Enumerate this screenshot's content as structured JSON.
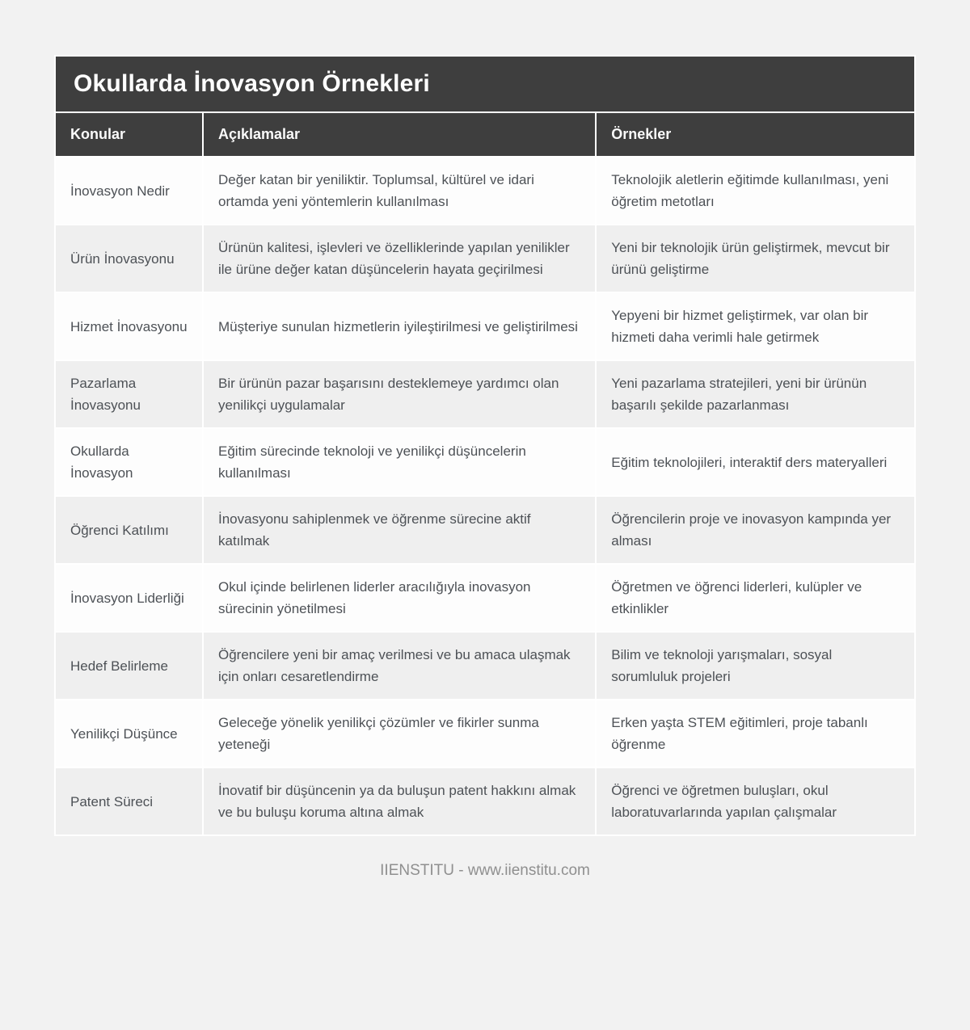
{
  "page": {
    "title": "Okullarda İnovasyon Örnekleri",
    "footer": "IIENSTITU - www.iienstitu.com"
  },
  "table": {
    "columns": [
      "Konular",
      "Açıklamalar",
      "Örnekler"
    ],
    "rows": [
      {
        "topic": "İnovasyon Nedir",
        "description": "Değer katan bir yeniliktir. Toplumsal, kültürel ve idari ortamda yeni yöntemlerin kullanılması",
        "example": "Teknolojik aletlerin eğitimde kullanılması, yeni öğretim metotları"
      },
      {
        "topic": "Ürün İnovasyonu",
        "description": "Ürünün kalitesi, işlevleri ve özelliklerinde yapılan yenilikler ile ürüne değer katan düşüncelerin hayata geçirilmesi",
        "example": "Yeni bir teknolojik ürün geliştirmek, mevcut bir ürünü geliştirme"
      },
      {
        "topic": "Hizmet İnovasyonu",
        "description": "Müşteriye sunulan hizmetlerin iyileştirilmesi ve geliştirilmesi",
        "example": "Yepyeni bir hizmet geliştirmek, var olan bir hizmeti daha verimli hale getirmek"
      },
      {
        "topic": "Pazarlama İnovasyonu",
        "description": "Bir ürünün pazar başarısını desteklemeye yardımcı olan yenilikçi uygulamalar",
        "example": "Yeni pazarlama stratejileri, yeni bir ürünün başarılı şekilde pazarlanması"
      },
      {
        "topic": "Okullarda İnovasyon",
        "description": "Eğitim sürecinde teknoloji ve yenilikçi düşüncelerin kullanılması",
        "example": "Eğitim teknolojileri, interaktif ders materyalleri"
      },
      {
        "topic": "Öğrenci Katılımı",
        "description": "İnovasyonu sahiplenmek ve öğrenme sürecine aktif katılmak",
        "example": "Öğrencilerin proje ve inovasyon kampında yer alması"
      },
      {
        "topic": "İnovasyon Liderliği",
        "description": "Okul içinde belirlenen liderler aracılığıyla inovasyon sürecinin yönetilmesi",
        "example": "Öğretmen ve öğrenci liderleri, kulüpler ve etkinlikler"
      },
      {
        "topic": "Hedef Belirleme",
        "description": "Öğrencilere yeni bir amaç verilmesi ve bu amaca ulaşmak için onları cesaretlendirme",
        "example": "Bilim ve teknoloji yarışmaları, sosyal sorumluluk projeleri"
      },
      {
        "topic": "Yenilikçi Düşünce",
        "description": "Geleceğe yönelik yenilikçi çözümler ve fikirler sunma yeteneği",
        "example": "Erken yaşta STEM eğitimleri, proje tabanlı öğrenme"
      },
      {
        "topic": "Patent Süreci",
        "description": "İnovatif bir düşüncenin ya da buluşun patent hakkını almak ve bu buluşu koruma altına almak",
        "example": "Öğrenci ve öğretmen buluşları, okul laboratuvarlarında yapılan çalışmalar"
      }
    ]
  },
  "theme": {
    "title_bg": "#3e3e3e",
    "header_bg": "#3e3e3e",
    "header_text": "#fafafa",
    "row_bg": "#fdfdfd",
    "row_alt_bg": "#efefef",
    "body_text": "#4d5156",
    "footer_text": "#8f8f8f",
    "page_bg": "#f2f2f2"
  }
}
